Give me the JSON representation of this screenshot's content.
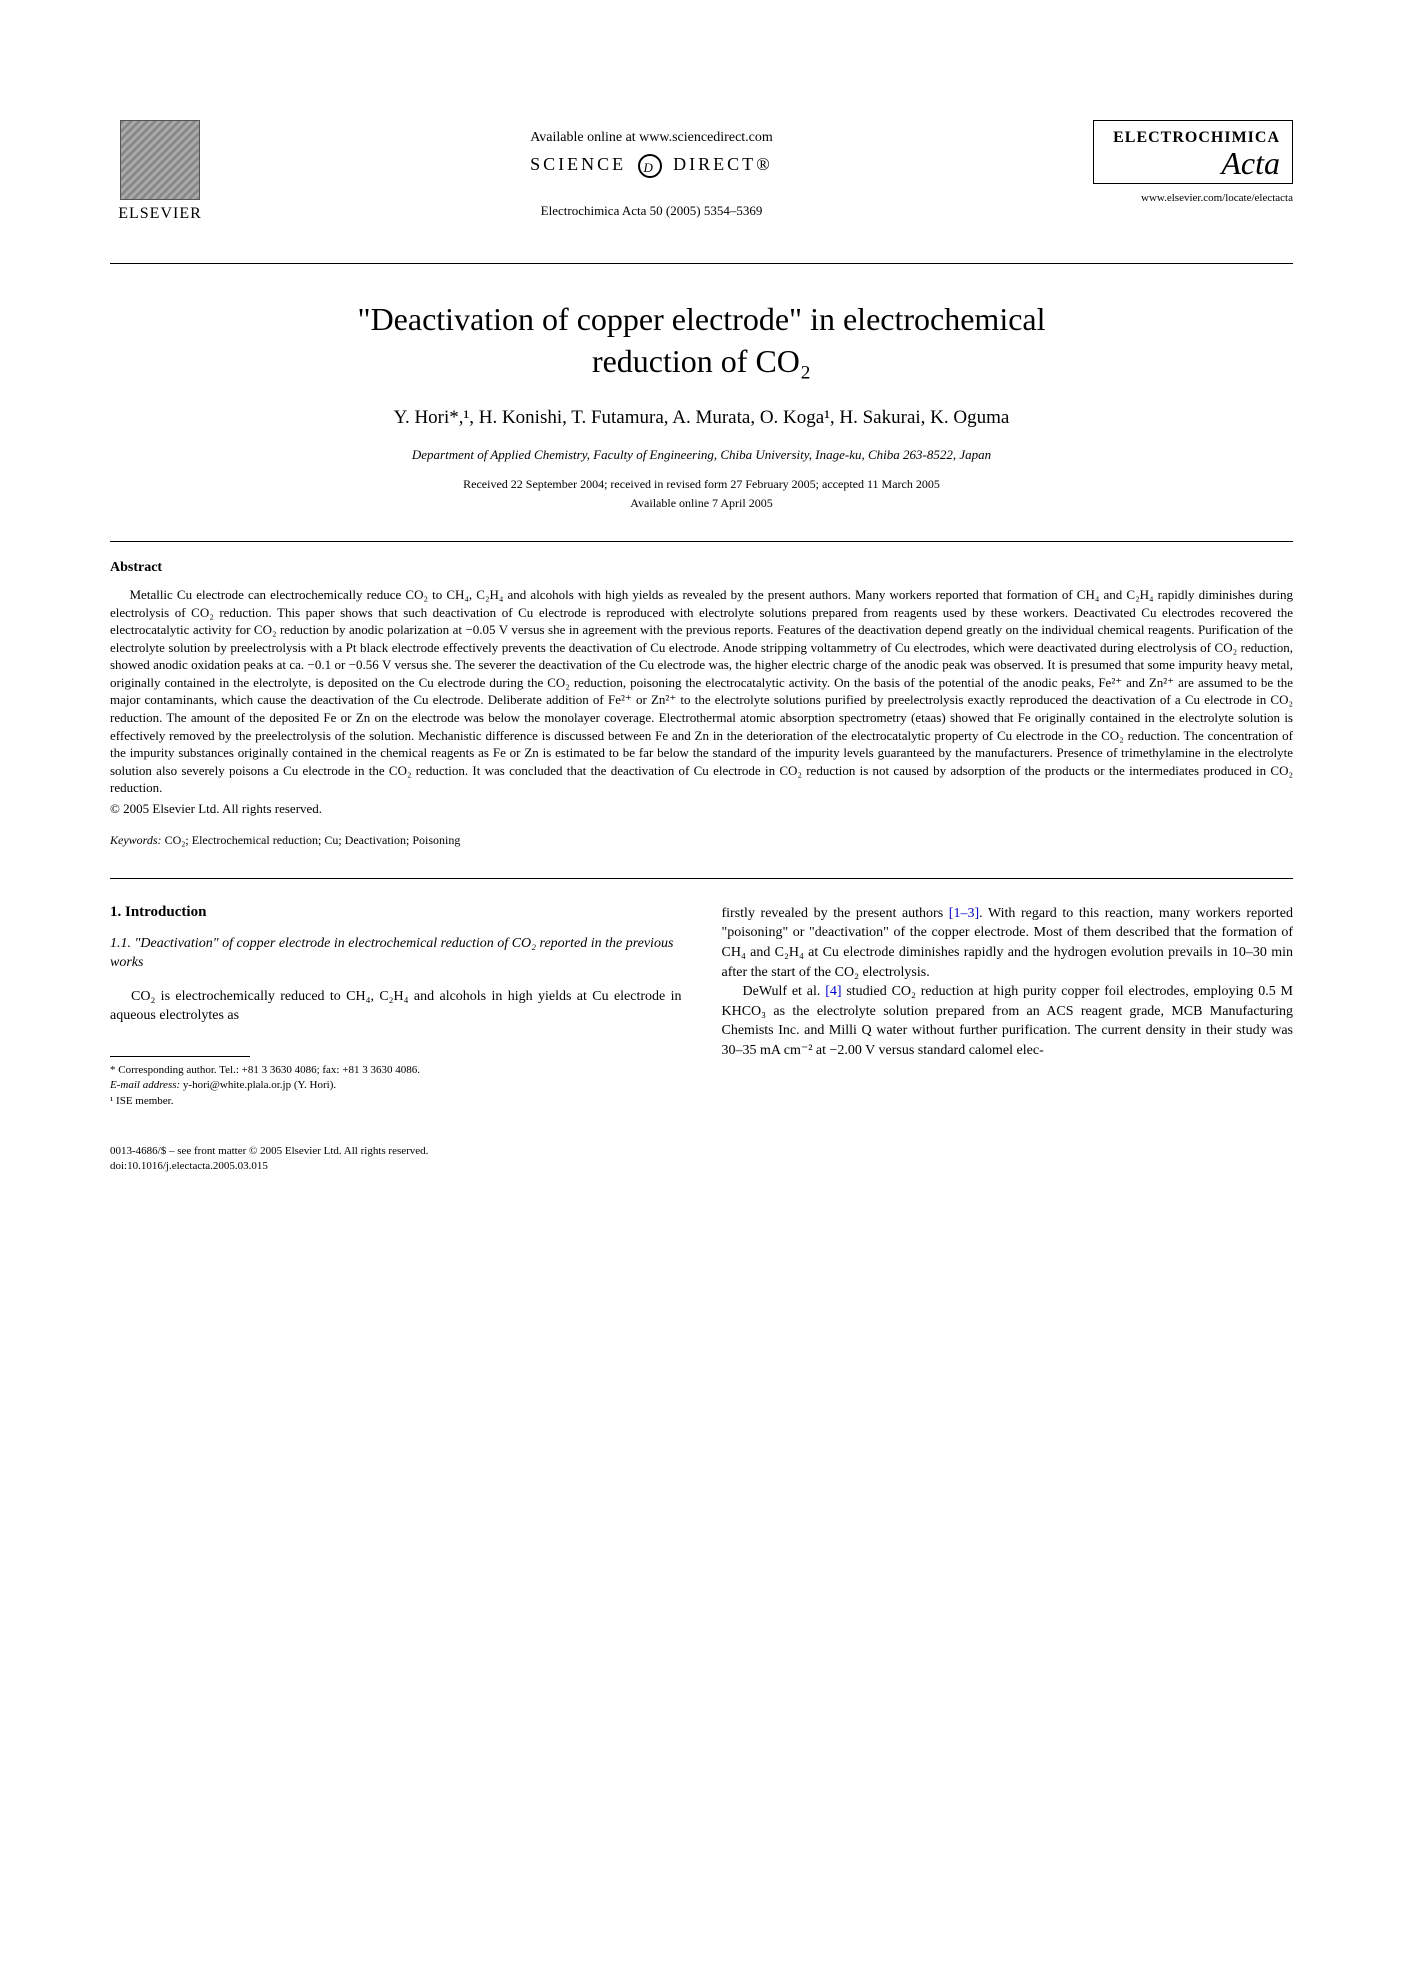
{
  "header": {
    "publisher": "ELSEVIER",
    "available_online": "Available online at www.sciencedirect.com",
    "sciencedirect_prefix": "SCIENCE",
    "sciencedirect_suffix": "DIRECT®",
    "citation": "Electrochimica Acta 50 (2005) 5354–5369",
    "journal_name": "ELECTROCHIMICA",
    "journal_script": "Acta",
    "journal_url": "www.elsevier.com/locate/electacta"
  },
  "article": {
    "title_line1": "\"Deactivation of copper electrode\" in electrochemical",
    "title_line2": "reduction of CO₂",
    "authors": "Y. Hori*,¹, H. Konishi, T. Futamura, A. Murata, O. Koga¹, H. Sakurai, K. Oguma",
    "affiliation": "Department of Applied Chemistry, Faculty of Engineering, Chiba University, Inage-ku, Chiba 263-8522, Japan",
    "dates_line1": "Received 22 September 2004; received in revised form 27 February 2005; accepted 11 March 2005",
    "dates_line2": "Available online 7 April 2005"
  },
  "abstract": {
    "heading": "Abstract",
    "text": "Metallic Cu electrode can electrochemically reduce CO₂ to CH₄, C₂H₄ and alcohols with high yields as revealed by the present authors. Many workers reported that formation of CH₄ and C₂H₄ rapidly diminishes during electrolysis of CO₂ reduction. This paper shows that such deactivation of Cu electrode is reproduced with electrolyte solutions prepared from reagents used by these workers. Deactivated Cu electrodes recovered the electrocatalytic activity for CO₂ reduction by anodic polarization at −0.05 V versus she in agreement with the previous reports. Features of the deactivation depend greatly on the individual chemical reagents. Purification of the electrolyte solution by preelectrolysis with a Pt black electrode effectively prevents the deactivation of Cu electrode. Anode stripping voltammetry of Cu electrodes, which were deactivated during electrolysis of CO₂ reduction, showed anodic oxidation peaks at ca. −0.1 or −0.56 V versus she. The severer the deactivation of the Cu electrode was, the higher electric charge of the anodic peak was observed. It is presumed that some impurity heavy metal, originally contained in the electrolyte, is deposited on the Cu electrode during the CO₂ reduction, poisoning the electrocatalytic activity. On the basis of the potential of the anodic peaks, Fe²⁺ and Zn²⁺ are assumed to be the major contaminants, which cause the deactivation of the Cu electrode. Deliberate addition of Fe²⁺ or Zn²⁺ to the electrolyte solutions purified by preelectrolysis exactly reproduced the deactivation of a Cu electrode in CO₂ reduction. The amount of the deposited Fe or Zn on the electrode was below the monolayer coverage. Electrothermal atomic absorption spectrometry (etaas) showed that Fe originally contained in the electrolyte solution is effectively removed by the preelectrolysis of the solution. Mechanistic difference is discussed between Fe and Zn in the deterioration of the electrocatalytic property of Cu electrode in the CO₂ reduction. The concentration of the impurity substances originally contained in the chemical reagents as Fe or Zn is estimated to be far below the standard of the impurity levels guaranteed by the manufacturers. Presence of trimethylamine in the electrolyte solution also severely poisons a Cu electrode in the CO₂ reduction. It was concluded that the deactivation of Cu electrode in CO₂ reduction is not caused by adsorption of the products or the intermediates produced in CO₂ reduction.",
    "copyright": "© 2005 Elsevier Ltd. All rights reserved.",
    "keywords_label": "Keywords:",
    "keywords_text": " CO₂; Electrochemical reduction; Cu; Deactivation; Poisoning"
  },
  "body": {
    "section1_heading": "1. Introduction",
    "subsection1_heading": "1.1. \"Deactivation\" of copper electrode in electrochemical reduction of CO₂ reported in the previous works",
    "col1_para1": "CO₂ is electrochemically reduced to CH₄, C₂H₄ and alcohols in high yields at Cu electrode in aqueous electrolytes as",
    "col2_para1_pre": "firstly revealed by the present authors ",
    "col2_para1_ref": "[1–3]",
    "col2_para1_post": ". With regard to this reaction, many workers reported \"poisoning\" or \"deactivation\" of the copper electrode. Most of them described that the formation of CH₄ and C₂H₄ at Cu electrode diminishes rapidly and the hydrogen evolution prevails in 10–30 min after the start of the CO₂ electrolysis.",
    "col2_para2_pre": "DeWulf et al. ",
    "col2_para2_ref": "[4]",
    "col2_para2_post": " studied CO₂ reduction at high purity copper foil electrodes, employing 0.5 M KHCO₃ as the electrolyte solution prepared from an ACS reagent grade, MCB Manufacturing Chemists Inc. and Milli Q water without further purification. The current density in their study was 30–35 mA cm⁻² at −2.00 V versus standard calomel elec-"
  },
  "footnotes": {
    "corresponding": "* Corresponding author. Tel.: +81 3 3630 4086; fax: +81 3 3630 4086.",
    "email_label": "E-mail address:",
    "email_value": " y-hori@white.plala.or.jp (Y. Hori).",
    "ise": "¹ ISE member."
  },
  "bottom": {
    "issn": "0013-4686/$ – see front matter © 2005 Elsevier Ltd. All rights reserved.",
    "doi": "doi:10.1016/j.electacta.2005.03.015"
  },
  "colors": {
    "text": "#000000",
    "background": "#ffffff",
    "link": "#0000cc"
  }
}
